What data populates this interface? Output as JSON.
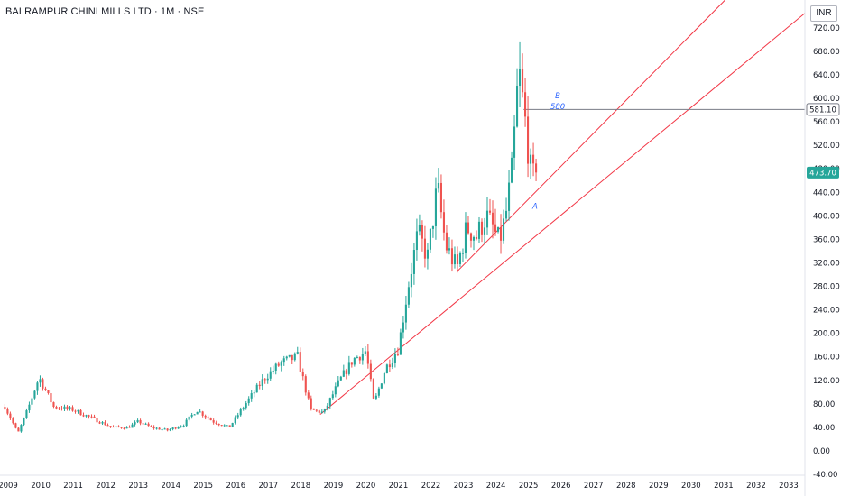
{
  "header": {
    "symbol_title": "BALRAMPUR CHINI MILLS LTD · 1M · NSE"
  },
  "price_scale": {
    "currency_button": "INR"
  },
  "chart_data": {
    "type": "candlestick",
    "title": "BALRAMPUR CHINI MILLS LTD · 1M · NSE",
    "ylim": [
      -40,
      740
    ],
    "xlim": [
      2008.75,
      2033.5
    ],
    "y_ticks": [
      "720.00",
      "680.00",
      "640.00",
      "600.00",
      "560.00",
      "520.00",
      "480.00",
      "440.00",
      "400.00",
      "360.00",
      "320.00",
      "280.00",
      "240.00",
      "200.00",
      "160.00",
      "120.00",
      "80.00",
      "40.00",
      "0.00",
      "-40.00"
    ],
    "x_ticks": [
      "2009",
      "2010",
      "2011",
      "2012",
      "2013",
      "2014",
      "2015",
      "2016",
      "2017",
      "2018",
      "2019",
      "2020",
      "2021",
      "2022",
      "2023",
      "2024",
      "2025",
      "2026",
      "2027",
      "2028",
      "2029",
      "2030",
      "2031",
      "2032",
      "2033"
    ],
    "price_labels": [
      {
        "text": "581.10",
        "role": "horizontal-line"
      },
      {
        "text": "473.70",
        "role": "last-price"
      }
    ],
    "anchors": [
      {
        "t": 2008.9,
        "p": 75
      },
      {
        "t": 2009.3,
        "p": 30
      },
      {
        "t": 2009.6,
        "p": 70
      },
      {
        "t": 2009.95,
        "p": 125
      },
      {
        "t": 2010.4,
        "p": 75
      },
      {
        "t": 2011.0,
        "p": 70
      },
      {
        "t": 2011.6,
        "p": 55
      },
      {
        "t": 2012.2,
        "p": 40
      },
      {
        "t": 2012.7,
        "p": 40
      },
      {
        "t": 2013.0,
        "p": 50
      },
      {
        "t": 2013.4,
        "p": 40
      },
      {
        "t": 2013.9,
        "p": 35
      },
      {
        "t": 2014.4,
        "p": 45
      },
      {
        "t": 2014.8,
        "p": 70
      },
      {
        "t": 2015.3,
        "p": 50
      },
      {
        "t": 2015.8,
        "p": 40
      },
      {
        "t": 2016.3,
        "p": 80
      },
      {
        "t": 2016.9,
        "p": 125
      },
      {
        "t": 2017.4,
        "p": 150
      },
      {
        "t": 2017.9,
        "p": 160
      },
      {
        "t": 2018.3,
        "p": 70
      },
      {
        "t": 2018.7,
        "p": 65
      },
      {
        "t": 2019.2,
        "p": 120
      },
      {
        "t": 2019.6,
        "p": 155
      },
      {
        "t": 2020.0,
        "p": 170
      },
      {
        "t": 2020.25,
        "p": 80
      },
      {
        "t": 2020.6,
        "p": 140
      },
      {
        "t": 2021.0,
        "p": 175
      },
      {
        "t": 2021.3,
        "p": 280
      },
      {
        "t": 2021.6,
        "p": 370
      },
      {
        "t": 2021.9,
        "p": 330
      },
      {
        "t": 2022.2,
        "p": 450
      },
      {
        "t": 2022.45,
        "p": 350
      },
      {
        "t": 2022.8,
        "p": 310
      },
      {
        "t": 2023.1,
        "p": 380
      },
      {
        "t": 2023.4,
        "p": 365
      },
      {
        "t": 2023.7,
        "p": 400
      },
      {
        "t": 2023.9,
        "p": 380
      },
      {
        "t": 2024.1,
        "p": 355
      },
      {
        "t": 2024.3,
        "p": 400
      },
      {
        "t": 2024.5,
        "p": 480
      },
      {
        "t": 2024.7,
        "p": 650
      },
      {
        "t": 2024.9,
        "p": 560
      },
      {
        "t": 2025.1,
        "p": 460
      },
      {
        "t": 2025.25,
        "p": 473.7
      }
    ],
    "annotations": [
      {
        "label": "B",
        "value_text": "580",
        "t": 2025.9,
        "p": 600
      },
      {
        "label": "A",
        "t": 2025.2,
        "p": 412
      }
    ],
    "lines": [
      {
        "name": "channel-upper",
        "t1": 2022.8,
        "p1": 305,
        "t2": 2033.5,
        "p2": 905
      },
      {
        "name": "channel-lower",
        "t1": 2018.6,
        "p1": 62,
        "t2": 2033.5,
        "p2": 745
      },
      {
        "name": "horizontal-581",
        "t1": 2024.85,
        "p1": 581.1,
        "t2": 2033.6,
        "p2": 581.1
      }
    ],
    "colors": {
      "up": "#26a69a",
      "down": "#ef5350",
      "line": "#f23645",
      "hline": "#787b86",
      "last": "#26a69a",
      "annotation": "#2962ff"
    }
  }
}
